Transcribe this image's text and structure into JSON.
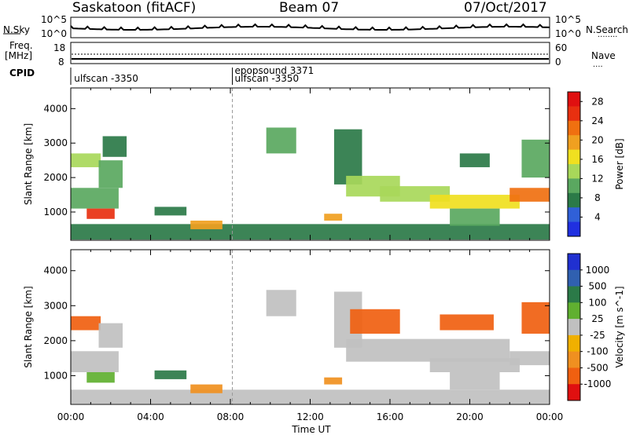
{
  "header": {
    "station": "Saskatoon (fitACF)",
    "beam": "Beam 07",
    "date": "07/Oct/2017"
  },
  "left_labels": {
    "nsky": "N.Sky",
    "freq1": "Freq.",
    "freq2": "[MHz]",
    "cpid": "CPID"
  },
  "right_labels": {
    "nsearch": "N.Search",
    "nave": "Nave"
  },
  "ticks": {
    "nsky": [
      "10^5",
      "10^0"
    ],
    "nsearch": [
      "10^5",
      "10^0"
    ],
    "freq": [
      "18",
      "8"
    ],
    "nave": [
      "60",
      "0"
    ]
  },
  "cpid_entries": [
    {
      "label": "ulfscan -3350",
      "time": 0.05
    },
    {
      "label": "epopsound 3371",
      "time": 8.1
    },
    {
      "label": "ulfscan -3350",
      "time": 8.1
    }
  ],
  "colors": {
    "power": [
      "#2030e0",
      "#3060d8",
      "#2b7a48",
      "#5aa860",
      "#a8d85a",
      "#f0e020",
      "#f0a020",
      "#f07010",
      "#e83010",
      "#e01010"
    ],
    "velocity": [
      "#e01010",
      "#f06010",
      "#f09020",
      "#f0b000",
      "#c0c0c0",
      "#60b030",
      "#2b7a48",
      "#3060b0",
      "#2030d0"
    ]
  },
  "chart_data": [
    {
      "type": "heatmap",
      "title": "",
      "xlabel": "Time UT",
      "ylabel": "Slant Range [km]",
      "x_ticks": [
        "00:00",
        "04:00",
        "08:00",
        "12:00",
        "16:00",
        "20:00",
        "00:00"
      ],
      "xlim": [
        0,
        24
      ],
      "ylim": [
        180,
        4600
      ],
      "y_ticks": [
        1000,
        2000,
        3000,
        4000
      ],
      "colorbar": {
        "label": "Power [dB]",
        "ticks": [
          4,
          8,
          12,
          16,
          20,
          24,
          28
        ],
        "range": [
          0,
          30
        ]
      },
      "regions": [
        {
          "t0": 0,
          "t1": 24,
          "r0": 200,
          "r1": 650,
          "v": 7
        },
        {
          "t0": 0,
          "t1": 2.4,
          "r0": 1100,
          "r1": 1700,
          "v": 10
        },
        {
          "t0": 0.8,
          "t1": 2.2,
          "r0": 800,
          "r1": 1100,
          "v": 26
        },
        {
          "t0": 0,
          "t1": 1.5,
          "r0": 2300,
          "r1": 2700,
          "v": 12
        },
        {
          "t0": 1.4,
          "t1": 2.6,
          "r0": 1700,
          "r1": 2500,
          "v": 9
        },
        {
          "t0": 1.6,
          "t1": 2.8,
          "r0": 2600,
          "r1": 3200,
          "v": 7
        },
        {
          "t0": 4.2,
          "t1": 5.8,
          "r0": 900,
          "r1": 1150,
          "v": 8
        },
        {
          "t0": 6.0,
          "t1": 7.6,
          "r0": 500,
          "r1": 750,
          "v": 20
        },
        {
          "t0": 9.8,
          "t1": 11.3,
          "r0": 2700,
          "r1": 3450,
          "v": 9
        },
        {
          "t0": 12.7,
          "t1": 13.6,
          "r0": 750,
          "r1": 950,
          "v": 20
        },
        {
          "t0": 13.2,
          "t1": 14.6,
          "r0": 1800,
          "r1": 3400,
          "v": 8
        },
        {
          "t0": 13.8,
          "t1": 16.5,
          "r0": 1450,
          "r1": 2050,
          "v": 13
        },
        {
          "t0": 15.5,
          "t1": 19.0,
          "r0": 1300,
          "r1": 1750,
          "v": 14
        },
        {
          "t0": 18.0,
          "t1": 22.5,
          "r0": 1100,
          "r1": 1500,
          "v": 17
        },
        {
          "t0": 19.0,
          "t1": 21.5,
          "r0": 600,
          "r1": 1100,
          "v": 9
        },
        {
          "t0": 22.0,
          "t1": 24,
          "r0": 1300,
          "r1": 1700,
          "v": 22
        },
        {
          "t0": 22.6,
          "t1": 24,
          "r0": 2000,
          "r1": 3100,
          "v": 11
        },
        {
          "t0": 19.5,
          "t1": 21.0,
          "r0": 2300,
          "r1": 2700,
          "v": 6
        }
      ]
    },
    {
      "type": "heatmap",
      "title": "",
      "xlabel": "Time UT",
      "ylabel": "Slant Range [km]",
      "x_ticks": [
        "00:00",
        "04:00",
        "08:00",
        "12:00",
        "16:00",
        "20:00",
        "00:00"
      ],
      "xlim": [
        0,
        24
      ],
      "ylim": [
        180,
        4600
      ],
      "y_ticks": [
        1000,
        2000,
        3000,
        4000
      ],
      "colorbar": {
        "label": "Velocity [m s^-1]",
        "ticks": [
          1000,
          500,
          100,
          25,
          -25,
          -100,
          -500,
          -1000
        ],
        "range": [
          -1200,
          1200
        ]
      },
      "regions": [
        {
          "t0": 0,
          "t1": 24,
          "r0": 200,
          "r1": 600,
          "v": 0
        },
        {
          "t0": 0,
          "t1": 2.4,
          "r0": 1100,
          "r1": 1700,
          "v": 0
        },
        {
          "t0": 0.8,
          "t1": 2.2,
          "r0": 800,
          "r1": 1100,
          "v": 60
        },
        {
          "t0": 0,
          "t1": 1.5,
          "r0": 2300,
          "r1": 2700,
          "v": -200
        },
        {
          "t0": 1.4,
          "t1": 2.6,
          "r0": 1800,
          "r1": 2500,
          "v": 0
        },
        {
          "t0": 4.2,
          "t1": 5.8,
          "r0": 900,
          "r1": 1150,
          "v": 300
        },
        {
          "t0": 6.0,
          "t1": 7.6,
          "r0": 500,
          "r1": 750,
          "v": -60
        },
        {
          "t0": 9.8,
          "t1": 11.3,
          "r0": 2700,
          "r1": 3450,
          "v": 0
        },
        {
          "t0": 12.7,
          "t1": 13.6,
          "r0": 750,
          "r1": 950,
          "v": -80
        },
        {
          "t0": 13.2,
          "t1": 14.6,
          "r0": 1800,
          "r1": 3400,
          "v": 0
        },
        {
          "t0": 14.0,
          "t1": 16.5,
          "r0": 2200,
          "r1": 2900,
          "v": -300
        },
        {
          "t0": 13.8,
          "t1": 22.0,
          "r0": 1400,
          "r1": 2050,
          "v": 0
        },
        {
          "t0": 18.0,
          "t1": 22.5,
          "r0": 1100,
          "r1": 1500,
          "v": 0
        },
        {
          "t0": 19.0,
          "t1": 21.5,
          "r0": 600,
          "r1": 1100,
          "v": 0
        },
        {
          "t0": 22.0,
          "t1": 24,
          "r0": 1300,
          "r1": 1700,
          "v": 0
        },
        {
          "t0": 22.6,
          "t1": 24,
          "r0": 2200,
          "r1": 3100,
          "v": -250
        },
        {
          "t0": 18.5,
          "t1": 21.2,
          "r0": 2300,
          "r1": 2750,
          "v": -300
        }
      ]
    }
  ]
}
